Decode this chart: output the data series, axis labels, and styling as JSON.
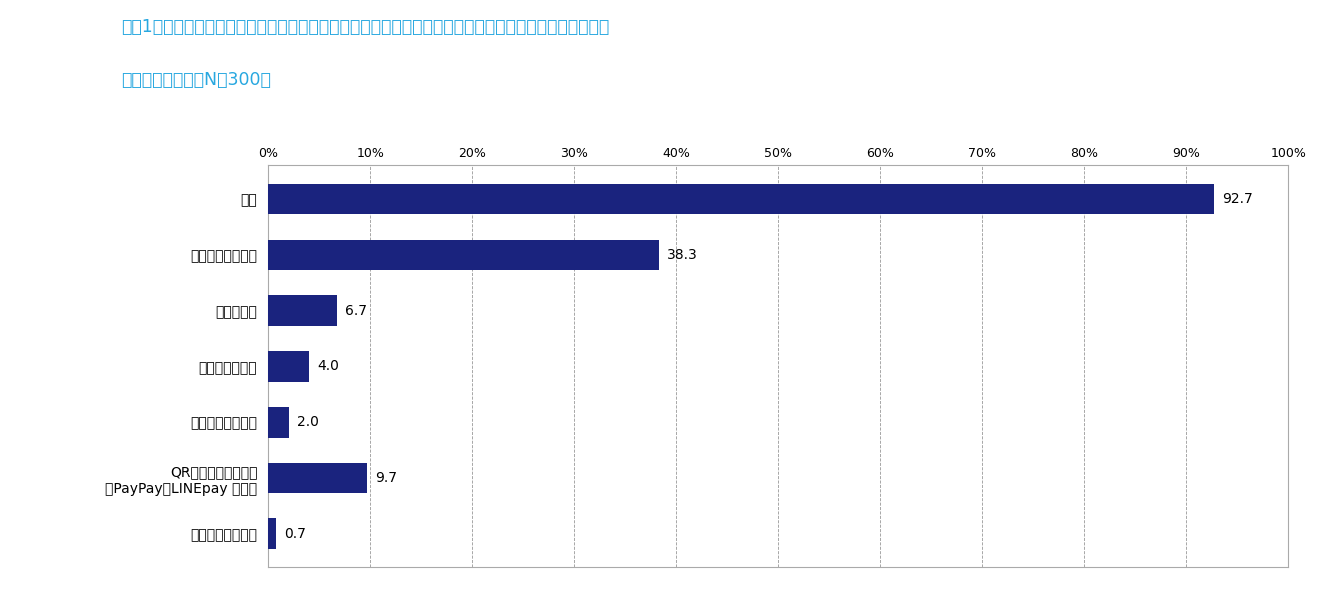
{
  "title_line1": "直近1年間に、医療機関（病院・クリニック・診療所など）を利用した際の支払方法をお選びください。",
  "title_line2": "（いくつでも）（N＝300）",
  "title_color": "#29a8e0",
  "categories": [
    "現金",
    "クレジットカード",
    "電子マネー",
    "デビットカード",
    "プリペイドカード",
    "QR／バーコード決済\n（PayPay、LINEpay など）",
    "その他の決済方法"
  ],
  "values": [
    92.7,
    38.3,
    6.7,
    4.0,
    2.0,
    9.7,
    0.7
  ],
  "bar_color": "#1a237e",
  "xlim": [
    0,
    100
  ],
  "xticks": [
    0,
    10,
    20,
    30,
    40,
    50,
    60,
    70,
    80,
    90,
    100
  ],
  "xtick_labels": [
    "0%",
    "10%",
    "20%",
    "30%",
    "40%",
    "50%",
    "60%",
    "70%",
    "80%",
    "90%",
    "100%"
  ],
  "background_color": "#ffffff",
  "grid_color": "#999999",
  "label_fontsize": 10,
  "value_fontsize": 10,
  "title_fontsize": 12.5
}
